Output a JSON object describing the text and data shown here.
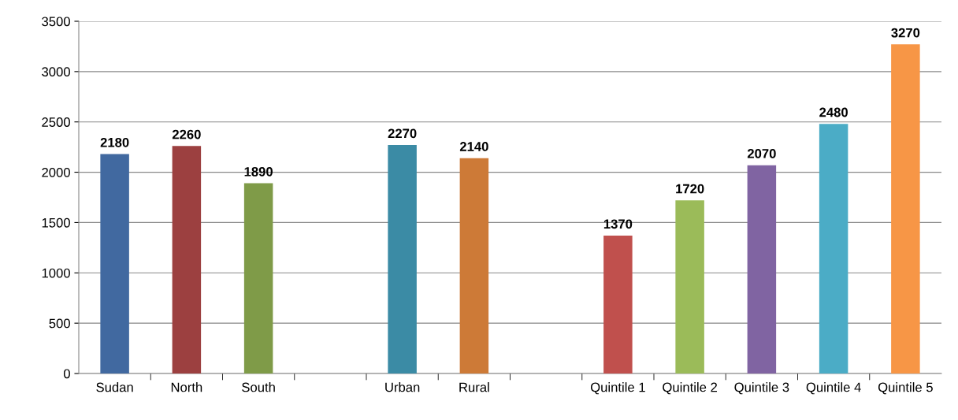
{
  "chart_data": {
    "type": "bar",
    "categories": [
      "Sudan",
      "North",
      "South",
      null,
      "Urban",
      "Rural",
      null,
      "Quintile 1",
      "Quintile 2",
      "Quintile 3",
      "Quintile 4",
      "Quintile 5"
    ],
    "values": [
      2180,
      2260,
      1890,
      null,
      2270,
      2140,
      null,
      1370,
      1720,
      2070,
      2480,
      3270
    ],
    "colors": [
      "#4169a0",
      "#9c4040",
      "#7f9b48",
      null,
      "#3b8ba5",
      "#cd7a37",
      null,
      "#c0504d",
      "#9bbb59",
      "#8064a2",
      "#4bacc6",
      "#f79646"
    ],
    "ylim": [
      0,
      3500
    ],
    "yticks": [
      0,
      500,
      1000,
      1500,
      2000,
      2500,
      3000,
      3500
    ],
    "grid": "y",
    "data_labels": true
  }
}
